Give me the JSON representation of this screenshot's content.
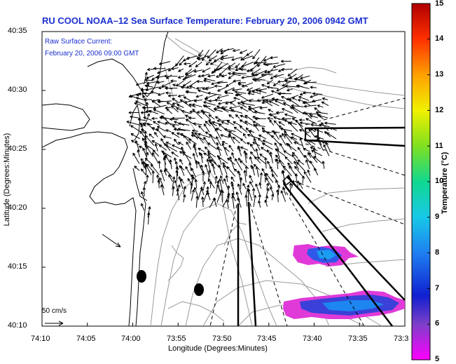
{
  "title": "RU COOL  NOAA–12  Sea Surface Temperature:  February 20, 2006 0942 GMT",
  "inset": {
    "line1": "Raw Surface Current:",
    "line2": "February 20, 2006 09:00 GMT"
  },
  "axes": {
    "xlabel": "Longitude (Degrees:Minutes)",
    "ylabel": "Latitude (Degrees:Minutes)",
    "xticks": [
      "74:10",
      "74:05",
      "74:00",
      "73:55",
      "73:50",
      "73:45",
      "73:40",
      "73:35",
      "73:3"
    ],
    "yticks": [
      "40:35",
      "40:30",
      "40:25",
      "40:20",
      "40:15",
      "40:10"
    ]
  },
  "colorbar": {
    "label": "Temperature (°C)",
    "ticks": [
      "15",
      "14",
      "13",
      "12",
      "11",
      "10",
      "9",
      "8",
      "7",
      "6",
      "5"
    ],
    "min": 5,
    "max": 15
  },
  "scale_label": "50 cm/s",
  "colors": {
    "title": "#1a2fd0",
    "land_outline": "#000000",
    "contours": "#9a9a9a"
  }
}
